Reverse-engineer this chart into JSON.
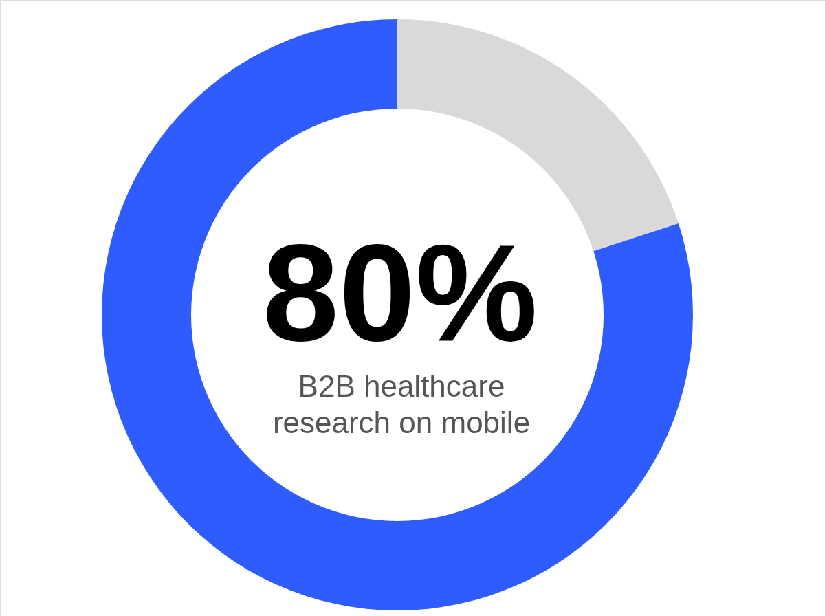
{
  "chart_data": {
    "type": "donut",
    "categories": [
      null,
      null
    ],
    "values": [
      20,
      80
    ],
    "colors": [
      "#d9d9d9",
      "#2f5cff"
    ],
    "value_labels": [
      null,
      "80%"
    ],
    "annotations": [
      "B2B healthcare research on mobile"
    ]
  }
}
